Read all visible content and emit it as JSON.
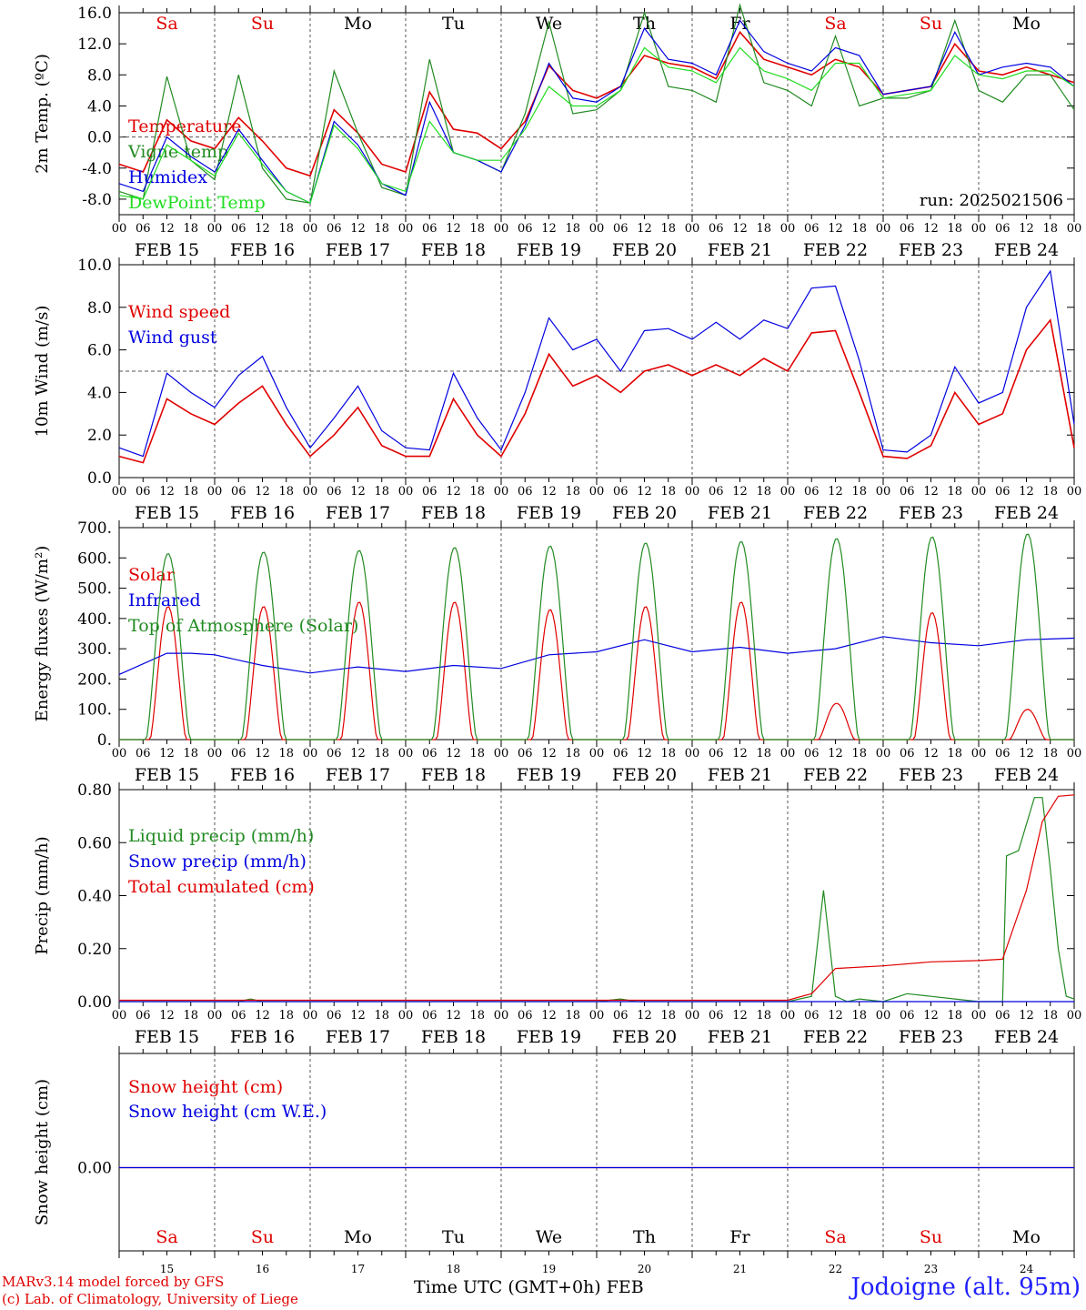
{
  "run_label": "run: 2025021506",
  "xaxis": {
    "hour_ticks": [
      "00",
      "06",
      "12",
      "18"
    ],
    "end_tick": "00",
    "date_labels": [
      "FEB 15",
      "FEB 16",
      "FEB 17",
      "FEB 18",
      "FEB 19",
      "FEB 20",
      "FEB 21",
      "FEB 22",
      "FEB 23",
      "FEB 24"
    ],
    "weekdays": [
      "Sa",
      "Su",
      "Mo",
      "Tu",
      "We",
      "Th",
      "Fr",
      "Sa",
      "Su",
      "Mo"
    ],
    "weekday_colors": [
      "#e00000",
      "#e00000",
      "#000000",
      "#000000",
      "#000000",
      "#000000",
      "#000000",
      "#e00000",
      "#e00000",
      "#000000"
    ],
    "day_numbers": [
      "15",
      "16",
      "17",
      "18",
      "19",
      "20",
      "21",
      "22",
      "23",
      "24"
    ],
    "caption": "Time UTC (GMT+0h)",
    "month": "FEB"
  },
  "footer": {
    "line1": "MARv3.14 model forced by GFS",
    "line2": "(c) Lab. of Climatology, University of Liege",
    "station": "Jodoigne (alt. 95m)"
  },
  "chart_data": [
    {
      "type": "line",
      "ylabel": "2m Temp. (ºC)",
      "ylim": [
        -10,
        16
      ],
      "yticks": [
        "16.0",
        "12.0",
        "8.0",
        "4.0",
        "0.0",
        "-4.0",
        "-8.0"
      ],
      "ytick_values": [
        16,
        12,
        8,
        4,
        0,
        -4,
        -8
      ],
      "reference_line": 0,
      "x_hours": [
        0,
        6,
        12,
        18,
        24,
        30,
        36,
        42,
        48,
        54,
        60,
        66,
        72,
        78,
        84,
        90,
        96,
        102,
        108,
        114,
        120,
        126,
        132,
        138,
        144,
        150,
        156,
        162,
        168,
        174,
        180,
        186,
        192,
        198,
        204,
        210,
        216,
        222,
        228,
        234,
        240
      ],
      "series": [
        {
          "name": "Temperature",
          "color": "#e00000",
          "values": [
            -3.5,
            -4.5,
            2.2,
            -0.5,
            -1.5,
            2.5,
            -0.5,
            -4.0,
            -5.0,
            3.5,
            0.5,
            -3.5,
            -4.5,
            5.8,
            1.0,
            0.5,
            -1.5,
            2.0,
            9.2,
            6.0,
            5.0,
            6.5,
            10.5,
            9.5,
            9.0,
            7.5,
            13.5,
            10.0,
            9.0,
            8.0,
            10.0,
            9.0,
            5.5,
            6.0,
            6.5,
            12.0,
            8.5,
            8.0,
            9.0,
            8.0,
            7.0
          ]
        },
        {
          "name": "Vigne temp",
          "color": "#228b22",
          "values": [
            -7.0,
            -8.0,
            7.8,
            -3.0,
            -5.5,
            8.0,
            -4.0,
            -8.0,
            -8.5,
            8.5,
            0.5,
            -6.5,
            -7.5,
            10.0,
            -2.0,
            -3.0,
            -4.5,
            3.0,
            14.8,
            3.0,
            3.5,
            6.0,
            16.0,
            6.5,
            6.0,
            4.5,
            17.0,
            7.0,
            6.0,
            4.0,
            13.0,
            4.0,
            5.0,
            5.0,
            6.0,
            15.0,
            6.0,
            4.5,
            8.0,
            8.0,
            3.5
          ]
        },
        {
          "name": "Humidex",
          "color": "#0000e0",
          "values": [
            -6.0,
            -7.0,
            0.0,
            -2.5,
            -4.5,
            1.0,
            -3.0,
            -7.0,
            -8.5,
            2.0,
            -1.0,
            -6.0,
            -7.5,
            4.5,
            -2.0,
            -3.0,
            -4.5,
            1.5,
            9.5,
            5.0,
            4.5,
            6.5,
            14.0,
            10.0,
            9.5,
            8.0,
            15.0,
            11.0,
            9.5,
            8.5,
            11.5,
            10.5,
            5.5,
            6.0,
            6.5,
            13.5,
            8.0,
            9.0,
            9.5,
            9.0,
            6.5
          ]
        },
        {
          "name": "DewPoint Temp",
          "color": "#22dd22",
          "values": [
            -7.5,
            -8.0,
            -1.0,
            -3.0,
            -5.0,
            0.5,
            -3.5,
            -7.0,
            -8.5,
            1.5,
            -1.5,
            -6.0,
            -7.0,
            2.0,
            -2.0,
            -3.0,
            -3.0,
            1.0,
            6.5,
            4.0,
            4.0,
            6.0,
            11.5,
            9.0,
            8.5,
            7.0,
            11.5,
            8.5,
            7.5,
            6.0,
            9.5,
            9.5,
            5.0,
            5.5,
            6.0,
            10.5,
            8.0,
            7.5,
            8.5,
            8.5,
            6.5
          ]
        }
      ]
    },
    {
      "type": "line",
      "ylabel": "10m Wind (m/s)",
      "ylim": [
        0,
        10
      ],
      "yticks": [
        "10.0",
        "8.0",
        "6.0",
        "4.0",
        "2.0",
        "0.0"
      ],
      "ytick_values": [
        10,
        8,
        6,
        4,
        2,
        0
      ],
      "reference_line": 5,
      "x_hours": [
        0,
        6,
        12,
        18,
        24,
        30,
        36,
        42,
        48,
        54,
        60,
        66,
        72,
        78,
        84,
        90,
        96,
        102,
        108,
        114,
        120,
        126,
        132,
        138,
        144,
        150,
        156,
        162,
        168,
        174,
        180,
        186,
        192,
        198,
        204,
        210,
        216,
        222,
        228,
        234,
        240
      ],
      "series": [
        {
          "name": "Wind speed",
          "color": "#e00000",
          "values": [
            1.0,
            0.7,
            3.7,
            3.0,
            2.5,
            3.5,
            4.3,
            2.5,
            1.0,
            2.0,
            3.3,
            1.5,
            1.0,
            1.0,
            3.7,
            2.0,
            1.0,
            3.0,
            5.8,
            4.3,
            4.8,
            4.0,
            5.0,
            5.3,
            4.8,
            5.3,
            4.8,
            5.6,
            5.0,
            6.8,
            6.9,
            4.0,
            1.0,
            0.9,
            1.5,
            4.0,
            2.5,
            3.0,
            6.0,
            7.4,
            1.4
          ]
        },
        {
          "name": "Wind gust",
          "color": "#0000e0",
          "values": [
            1.4,
            1.0,
            4.9,
            4.0,
            3.3,
            4.8,
            5.7,
            3.3,
            1.4,
            2.8,
            4.3,
            2.2,
            1.4,
            1.3,
            4.9,
            2.8,
            1.3,
            4.0,
            7.5,
            6.0,
            6.5,
            5.0,
            6.9,
            7.0,
            6.5,
            7.3,
            6.5,
            7.4,
            7.0,
            8.9,
            9.0,
            5.5,
            1.3,
            1.2,
            2.0,
            5.2,
            3.5,
            4.0,
            8.0,
            9.7,
            2.5
          ]
        }
      ]
    },
    {
      "type": "line",
      "ylabel": "Energy fluxes (W/m²)",
      "ylim": [
        0,
        700
      ],
      "yticks": [
        "700.",
        "600.",
        "500.",
        "400.",
        "300.",
        "200.",
        "100.",
        "0."
      ],
      "ytick_values": [
        700,
        600,
        500,
        400,
        300,
        200,
        100,
        0
      ],
      "series": [
        {
          "name": "Solar",
          "color": "#e00000",
          "day_peaks": [
            440,
            440,
            455,
            455,
            430,
            440,
            455,
            120,
            420,
            100
          ]
        },
        {
          "name": "Infrared",
          "color": "#0000e0",
          "x_hours": [
            0,
            12,
            18,
            24,
            36,
            48,
            60,
            72,
            84,
            96,
            108,
            120,
            132,
            144,
            156,
            168,
            180,
            192,
            198,
            204,
            216,
            228,
            240
          ],
          "values": [
            215,
            285,
            285,
            280,
            245,
            220,
            240,
            225,
            245,
            235,
            280,
            290,
            330,
            290,
            305,
            285,
            300,
            340,
            330,
            320,
            310,
            330,
            335
          ]
        },
        {
          "name": "Top of Atmosphere (Solar)",
          "color": "#228b22",
          "day_peaks": [
            615,
            620,
            625,
            635,
            640,
            650,
            655,
            665,
            670,
            680
          ]
        }
      ]
    },
    {
      "type": "line",
      "ylabel": "Precip (mm/h)",
      "ylim": [
        0,
        0.8
      ],
      "yticks": [
        "0.80",
        "0.60",
        "0.40",
        "0.20",
        "0.00"
      ],
      "ytick_values": [
        0.8,
        0.6,
        0.4,
        0.2,
        0.0
      ],
      "series": [
        {
          "name": "Liquid precip (mm/h)",
          "color": "#228b22",
          "x_hours": [
            0,
            30,
            33,
            36,
            120,
            126,
            130,
            168,
            174,
            177,
            180,
            183,
            186,
            192,
            198,
            204,
            210,
            216,
            222,
            223,
            226,
            230,
            232,
            234,
            236,
            238,
            240
          ],
          "values": [
            0,
            0,
            0.01,
            0,
            0,
            0.01,
            0,
            0,
            0.02,
            0.42,
            0.02,
            0,
            0.01,
            0,
            0.03,
            0.02,
            0.01,
            0,
            0,
            0.55,
            0.57,
            0.77,
            0.77,
            0.5,
            0.2,
            0.02,
            0.01
          ]
        },
        {
          "name": "Snow precip (mm/h)",
          "color": "#0000e0",
          "x_hours": [
            0,
            240
          ],
          "values": [
            0,
            0
          ]
        },
        {
          "name": "Total cumulated (cm)",
          "color": "#e00000",
          "x_hours": [
            0,
            168,
            174,
            180,
            192,
            204,
            216,
            222,
            228,
            232,
            236,
            240
          ],
          "values": [
            0.005,
            0.005,
            0.03,
            0.125,
            0.135,
            0.15,
            0.155,
            0.16,
            0.42,
            0.68,
            0.775,
            0.78
          ]
        }
      ]
    },
    {
      "type": "line",
      "ylabel": "Snow height (cm)",
      "yticks": [
        "0.00"
      ],
      "ytick_values": [
        0
      ],
      "series": [
        {
          "name": "Snow height (cm)",
          "color": "#e00000",
          "x_hours": [
            0,
            240
          ],
          "values": [
            0,
            0
          ]
        },
        {
          "name": "Snow height (cm W.E.)",
          "color": "#0000e0",
          "x_hours": [
            0,
            240
          ],
          "values": [
            0,
            0
          ]
        }
      ]
    }
  ]
}
